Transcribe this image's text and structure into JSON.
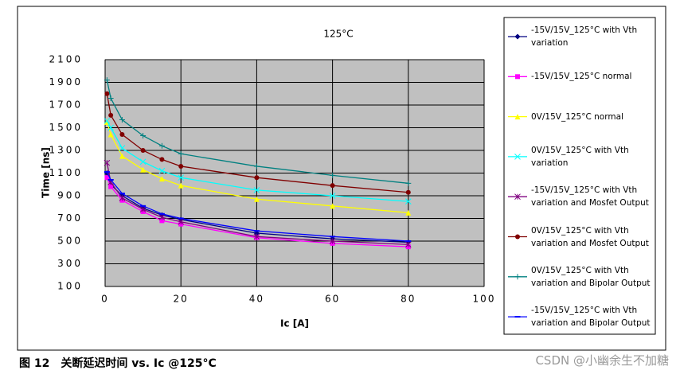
{
  "chart_data": {
    "type": "line",
    "title": "125°C",
    "x_label": "Ic [A]",
    "y_label": "Time [ns]",
    "x": [
      0.5,
      1.5,
      4.5,
      10,
      15,
      20,
      40,
      60,
      80
    ],
    "xlim": [
      0,
      100
    ],
    "xticks": [
      0,
      20,
      40,
      60,
      80,
      100
    ],
    "ylim": [
      100,
      2100
    ],
    "yticks": [
      100,
      300,
      500,
      700,
      900,
      1100,
      1300,
      1500,
      1700,
      1900,
      2100
    ],
    "grid": true,
    "series": [
      {
        "name": "-15V/15V_125°C with Vth variation",
        "color": "#000080",
        "marker": "diamond",
        "values": [
          1100,
          1000,
          900,
          790,
          730,
          690,
          570,
          520,
          490
        ]
      },
      {
        "name": "-15V/15V_125°C normal",
        "color": "#ff00ff",
        "marker": "square",
        "values": [
          1060,
          980,
          860,
          760,
          680,
          650,
          530,
          480,
          450
        ]
      },
      {
        "name": "0V/15V_125°C normal",
        "color": "#ffff00",
        "marker": "triangle",
        "values": [
          1550,
          1440,
          1250,
          1130,
          1050,
          990,
          870,
          810,
          750
        ]
      },
      {
        "name": "0V/15V_125°C with Vth variation",
        "color": "#00ffff",
        "marker": "x",
        "values": [
          1560,
          1500,
          1320,
          1200,
          1120,
          1060,
          950,
          900,
          850
        ]
      },
      {
        "name": "-15V/15V_125°C with Vth variation and Mosfet Output",
        "color": "#800080",
        "marker": "star",
        "values": [
          1190,
          1020,
          880,
          780,
          710,
          670,
          540,
          500,
          470
        ]
      },
      {
        "name": "0V/15V_125°C with Vth variation and Mosfet Output",
        "color": "#800000",
        "marker": "circle",
        "values": [
          1800,
          1610,
          1440,
          1300,
          1220,
          1160,
          1060,
          990,
          930
        ]
      },
      {
        "name": "0V/15V_125°C with Vth variation and Bipolar Output",
        "color": "#008080",
        "marker": "plus",
        "values": [
          1920,
          1760,
          1570,
          1430,
          1340,
          1270,
          1160,
          1080,
          1010
        ]
      },
      {
        "name": "-15V/15V_125°C with Vth variation and Bipolar Output",
        "color": "#0000ff",
        "marker": "dash",
        "values": [
          1110,
          1040,
          920,
          810,
          740,
          700,
          590,
          540,
          500
        ]
      }
    ]
  },
  "caption": "图 12　关断延迟时间 vs. Ic @125°C",
  "watermark": "CSDN @小幽余生不加糖"
}
